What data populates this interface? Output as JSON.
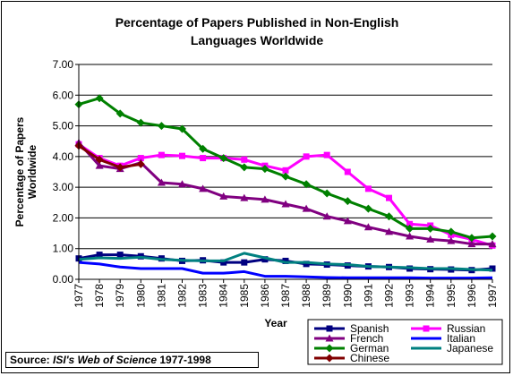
{
  "chart_data": {
    "type": "line",
    "title": "Percentage of Papers Published in Non-English",
    "title_line2": "Languages Worldwide",
    "xlabel": "Year",
    "ylabel": "Percentage of Papers",
    "ylabel_line2": "Worldwide",
    "ylim": [
      0,
      7
    ],
    "y_ticks": [
      "0.00",
      "1.00",
      "2.00",
      "3.00",
      "4.00",
      "5.00",
      "6.00",
      "7.00"
    ],
    "x": [
      "1977",
      "1978",
      "1979",
      "1980",
      "1981",
      "1982",
      "1983",
      "1984",
      "1985",
      "1986",
      "1987",
      "1988",
      "1989",
      "1990",
      "1991",
      "1992",
      "1993",
      "1994",
      "1995",
      "1996",
      "1997"
    ],
    "grid": "horizontal",
    "legend_position": "bottom-right",
    "series": [
      {
        "name": "Spanish",
        "color": "#000080",
        "marker": "square",
        "values": [
          0.68,
          0.8,
          0.8,
          0.75,
          0.68,
          0.6,
          0.62,
          0.55,
          0.55,
          0.65,
          0.6,
          0.5,
          0.48,
          0.45,
          0.42,
          0.4,
          0.35,
          0.33,
          0.32,
          0.3,
          0.35
        ]
      },
      {
        "name": "Russian",
        "color": "#ff00ff",
        "marker": "square",
        "values": [
          4.4,
          3.95,
          3.7,
          3.95,
          4.05,
          4.02,
          3.95,
          3.95,
          3.9,
          3.7,
          3.55,
          4.0,
          4.05,
          3.5,
          2.95,
          2.65,
          1.8,
          1.75,
          1.45,
          1.3,
          1.1
        ]
      },
      {
        "name": "French",
        "color": "#800080",
        "marker": "triangle",
        "values": [
          4.45,
          3.7,
          3.6,
          3.8,
          3.15,
          3.1,
          2.95,
          2.7,
          2.65,
          2.6,
          2.45,
          2.3,
          2.05,
          1.9,
          1.7,
          1.55,
          1.4,
          1.3,
          1.25,
          1.15,
          1.15
        ]
      },
      {
        "name": "Italian",
        "color": "#0000ff",
        "marker": "none",
        "values": [
          0.55,
          0.5,
          0.4,
          0.35,
          0.35,
          0.35,
          0.2,
          0.2,
          0.25,
          0.1,
          0.1,
          0.08,
          0.06,
          0.05,
          0.05,
          0.05,
          0.05,
          0.04,
          0.04,
          0.04,
          0.05
        ]
      },
      {
        "name": "German",
        "color": "#008000",
        "marker": "diamond",
        "values": [
          5.7,
          5.9,
          5.4,
          5.1,
          5.0,
          4.9,
          4.25,
          3.95,
          3.65,
          3.6,
          3.35,
          3.1,
          2.8,
          2.55,
          2.3,
          2.05,
          1.65,
          1.65,
          1.55,
          1.35,
          1.4
        ]
      },
      {
        "name": "Japanese",
        "color": "#008080",
        "marker": "none",
        "values": [
          0.65,
          0.7,
          0.68,
          0.72,
          0.65,
          0.62,
          0.6,
          0.6,
          0.85,
          0.7,
          0.55,
          0.55,
          0.5,
          0.48,
          0.42,
          0.4,
          0.38,
          0.35,
          0.35,
          0.32,
          0.3
        ]
      },
      {
        "name": "Chinese",
        "color": "#800000",
        "marker": "diamond",
        "values": [
          4.35,
          3.9,
          3.65,
          3.75,
          null,
          null,
          null,
          null,
          null,
          null,
          null,
          null,
          null,
          null,
          null,
          null,
          null,
          null,
          null,
          null,
          null
        ]
      }
    ]
  },
  "source": {
    "prefix": "Source: ",
    "italic": "ISI's Web of Science",
    "suffix": " 1977-1998"
  }
}
